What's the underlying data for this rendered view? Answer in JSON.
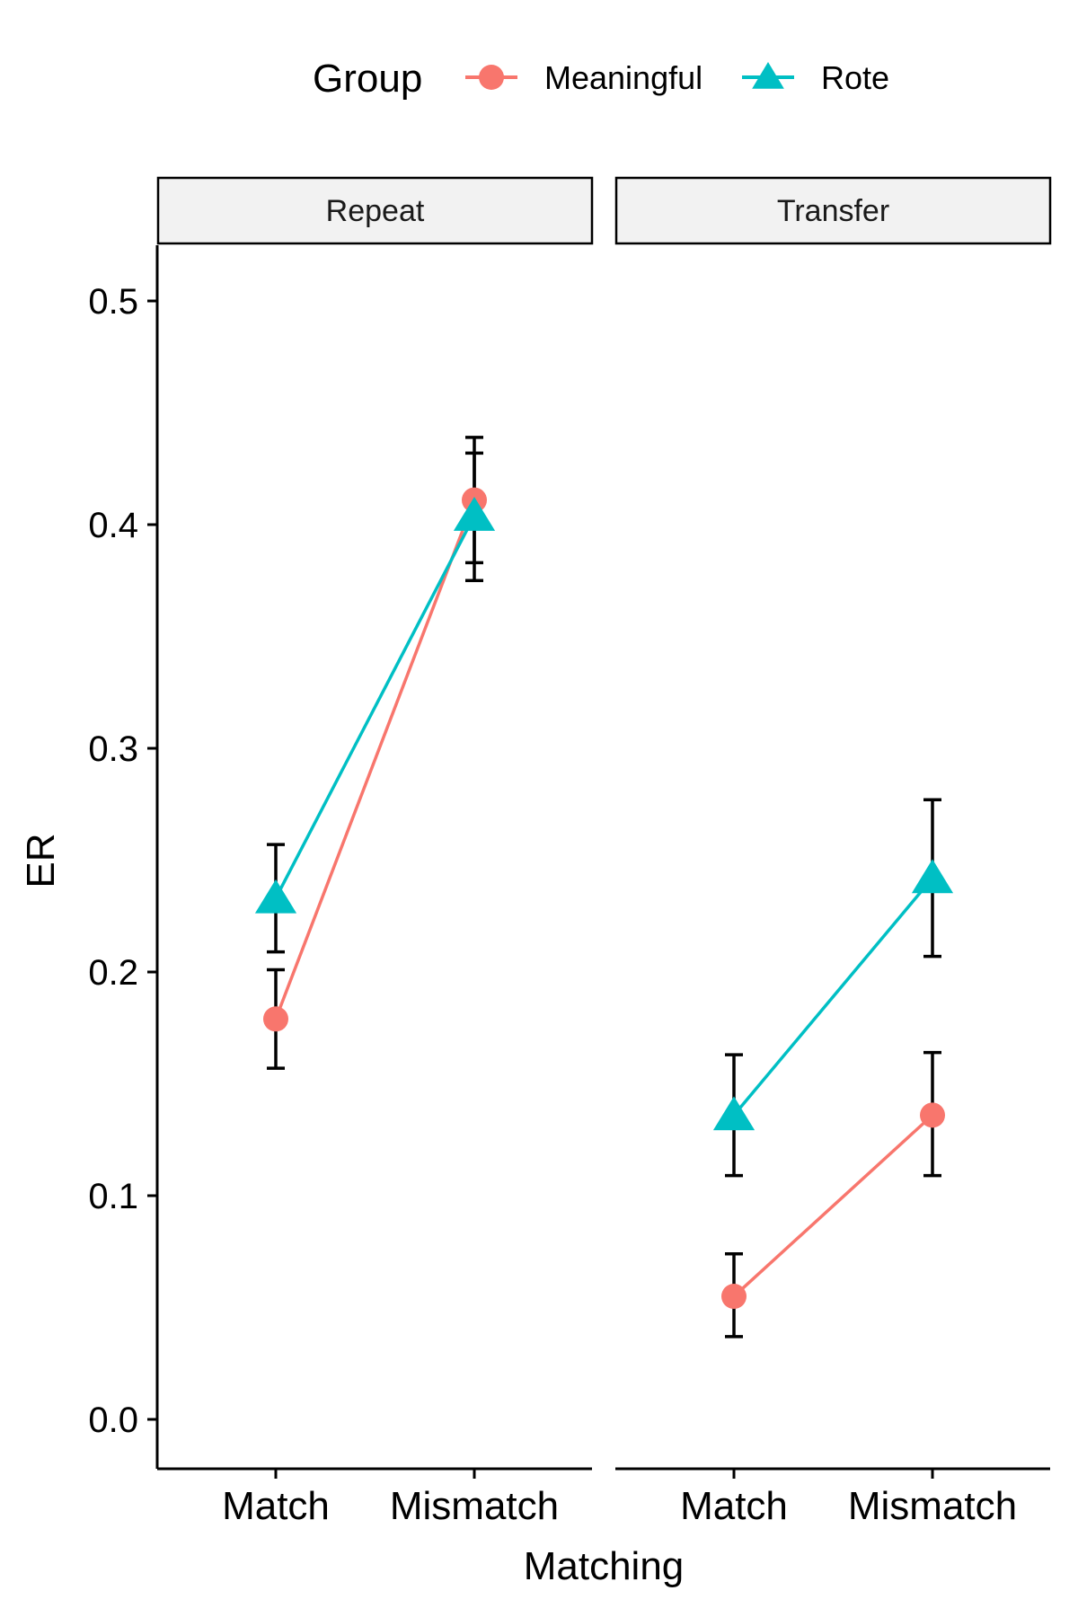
{
  "legend": {
    "title": "Group",
    "items": [
      {
        "name": "Meaningful",
        "shape": "circle",
        "color": "#F8766D"
      },
      {
        "name": "Rote",
        "shape": "triangle",
        "color": "#00BFC4"
      }
    ]
  },
  "chart_data": {
    "type": "line",
    "xlabel": "Matching",
    "ylabel": "ER",
    "ylim": [
      -0.025,
      0.525
    ],
    "yticks": [
      "0.0",
      "0.1",
      "0.2",
      "0.3",
      "0.4",
      "0.5"
    ],
    "categories": [
      "Match",
      "Mismatch"
    ],
    "grid": false,
    "legend_position": "top",
    "facets": [
      {
        "label": "Repeat",
        "series": [
          {
            "name": "Meaningful",
            "values": [
              0.179,
              0.411
            ],
            "ci_low": [
              0.157,
              0.383
            ],
            "ci_high": [
              0.201,
              0.439
            ]
          },
          {
            "name": "Rote",
            "values": [
              0.233,
              0.404
            ],
            "ci_low": [
              0.209,
              0.375
            ],
            "ci_high": [
              0.257,
              0.432
            ]
          }
        ]
      },
      {
        "label": "Transfer",
        "series": [
          {
            "name": "Meaningful",
            "values": [
              0.055,
              0.136
            ],
            "ci_low": [
              0.037,
              0.109
            ],
            "ci_high": [
              0.074,
              0.164
            ]
          },
          {
            "name": "Rote",
            "values": [
              0.136,
              0.242
            ],
            "ci_low": [
              0.109,
              0.207
            ],
            "ci_high": [
              0.163,
              0.277
            ]
          }
        ]
      }
    ]
  }
}
